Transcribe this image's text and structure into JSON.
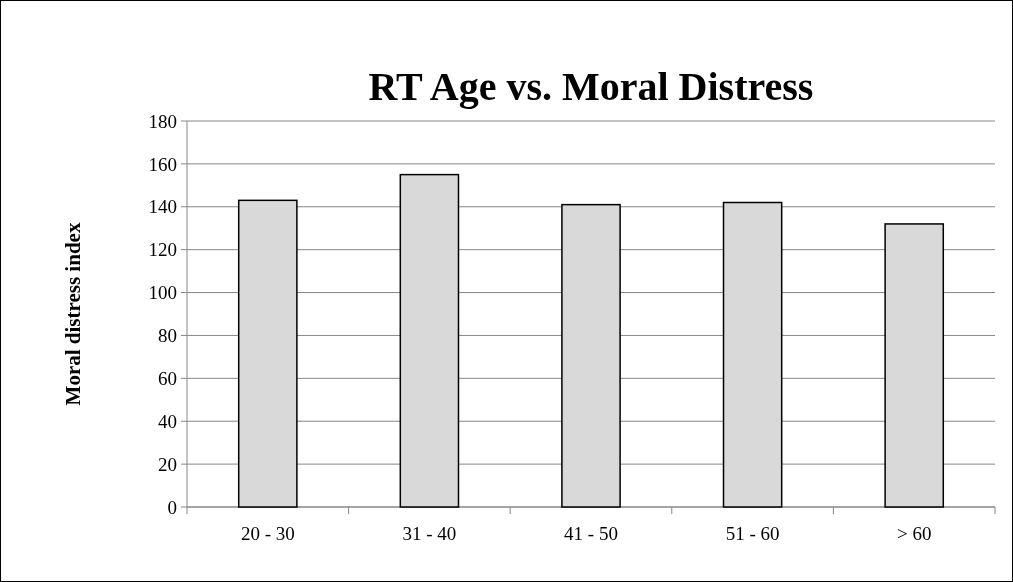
{
  "chart_data": {
    "type": "bar",
    "title": "RT Age vs. Moral Distress",
    "ylabel": "Moral distress index",
    "categories": [
      "20 - 30",
      "31 - 40",
      "41 - 50",
      "51 - 60",
      "> 60"
    ],
    "values": [
      143,
      155,
      141,
      142,
      132
    ],
    "color": "#d9d9d9",
    "ylim": [
      0,
      180
    ],
    "yticks": [
      0,
      20,
      40,
      60,
      80,
      100,
      120,
      140,
      160,
      180
    ],
    "grid": "y"
  }
}
